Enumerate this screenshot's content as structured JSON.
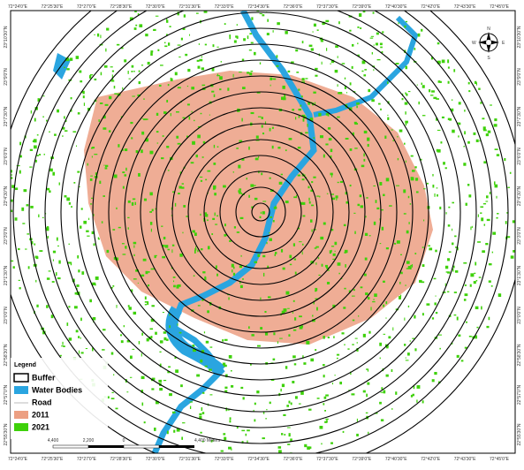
{
  "map": {
    "longitude_labels": [
      "72°24'0\"E",
      "72°25'30\"E",
      "72°27'0\"E",
      "72°28'30\"E",
      "72°30'0\"E",
      "72°31'30\"E",
      "72°33'0\"E",
      "72°34'30\"E",
      "72°36'0\"E",
      "72°37'30\"E",
      "72°39'0\"E",
      "72°40'30\"E",
      "72°42'0\"E",
      "72°43'30\"E",
      "72°45'0\"E"
    ],
    "latitude_labels": [
      "23°10'30\"N",
      "23°9'0\"N",
      "23°7'30\"N",
      "23°6'0\"N",
      "23°4'30\"N",
      "23°3'0\"N",
      "23°1'30\"N",
      "23°0'0\"N",
      "22°58'30\"N",
      "22°57'0\"N",
      "22°55'30\"N"
    ],
    "legend": {
      "title": "Legend",
      "items": [
        "Buffer",
        "Water Bodies",
        "Road",
        "2011",
        "2021"
      ]
    },
    "scale_bar": {
      "labels": [
        "4,400",
        "2,200",
        "0",
        "4,400 Meters"
      ]
    },
    "north_arrow": {
      "n": "N",
      "e": "E",
      "s": "S",
      "w": "W"
    }
  }
}
